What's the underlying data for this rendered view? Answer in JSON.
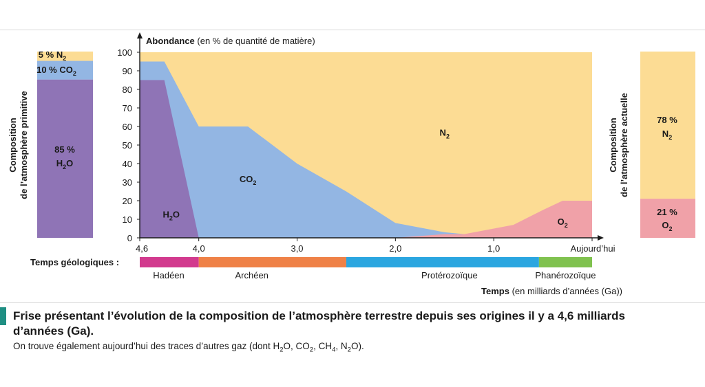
{
  "colors": {
    "H2O": "#8f74b6",
    "CO2": "#93b6e3",
    "N2": "#fcdc94",
    "O2": "#f0a1a8",
    "hadeen": "#d23a8e",
    "archeen": "#ef8147",
    "proterozoique": "#2ba6e0",
    "phanerozoique": "#80c24f",
    "caption_bar": "#1f8f83"
  },
  "left_bar": {
    "title_line1": "Composition",
    "title_line2": "de l’atmosphère primitive",
    "n2_pct": "5 %",
    "n2_label": "N",
    "n2_sub": "2",
    "co2_pct": "10 %",
    "co2_label": "CO",
    "co2_sub": "2",
    "h2o_pct": "85 %",
    "h2o_label": "H",
    "h2o_sub": "2",
    "h2o_tail": "O",
    "values": {
      "H2O": 85,
      "CO2": 10,
      "N2": 5
    }
  },
  "right_bar": {
    "title_line1": "Composition",
    "title_line2": "de l’atmosphère actuelle",
    "n2_pct": "78 %",
    "n2_label": "N",
    "n2_sub": "2",
    "o2_pct": "21 %",
    "o2_label": "O",
    "o2_sub": "2",
    "values": {
      "O2": 21,
      "N2": 78
    }
  },
  "chart_data": {
    "type": "area",
    "ylabel_bold": "Abondance",
    "ylabel_rest": " (en % de quantité de matière)",
    "ylim": [
      0,
      100
    ],
    "yticks": [
      0,
      10,
      20,
      30,
      40,
      50,
      60,
      70,
      80,
      90,
      100
    ],
    "xlim": [
      4.6,
      0
    ],
    "xticks": [
      {
        "value": 4.6,
        "label": "4,6"
      },
      {
        "value": 4.0,
        "label": "4,0"
      },
      {
        "value": 3.0,
        "label": "3,0"
      },
      {
        "value": 2.0,
        "label": "2,0"
      },
      {
        "value": 1.0,
        "label": "1,0"
      },
      {
        "value": 0.0,
        "label": "Aujourd’hui"
      }
    ],
    "xlabel_bold": "Temps",
    "xlabel_rest": " (en milliards d’années (Ga))",
    "series": [
      {
        "name": "H2O",
        "label": "H",
        "sub": "2",
        "tail": "O",
        "label_at": [
          4.28,
          11
        ],
        "points": [
          [
            4.6,
            85
          ],
          [
            4.35,
            85
          ],
          [
            4.0,
            0
          ]
        ]
      },
      {
        "name": "CO2",
        "label": "CO",
        "sub": "2",
        "tail": "",
        "label_at": [
          3.5,
          30
        ],
        "points": [
          [
            4.6,
            95
          ],
          [
            4.35,
            95
          ],
          [
            4.0,
            60
          ],
          [
            3.5,
            60
          ],
          [
            3.0,
            40
          ],
          [
            2.5,
            25
          ],
          [
            2.0,
            8
          ],
          [
            1.5,
            3
          ],
          [
            1.3,
            2
          ],
          [
            0.0,
            2
          ]
        ]
      },
      {
        "name": "O2",
        "label": "O",
        "sub": "2",
        "tail": "",
        "label_at": [
          0.3,
          7
        ],
        "points": [
          [
            2.0,
            0
          ],
          [
            1.5,
            2
          ],
          [
            1.3,
            2
          ],
          [
            0.8,
            7
          ],
          [
            0.5,
            15
          ],
          [
            0.3,
            20
          ],
          [
            0.0,
            20
          ]
        ]
      },
      {
        "name": "N2",
        "label": "N",
        "sub": "2",
        "tail": "",
        "label_at": [
          1.5,
          55
        ],
        "points": []
      }
    ]
  },
  "timeline": {
    "label": "Temps géologiques :",
    "eons": [
      {
        "name": "Hadéen",
        "start": 4.6,
        "end": 4.0,
        "color_key": "hadeen"
      },
      {
        "name": "Archéen",
        "start": 4.0,
        "end": 2.5,
        "color_key": "archeen"
      },
      {
        "name": "Protérozoïque",
        "start": 2.5,
        "end": 0.54,
        "color_key": "proterozoique"
      },
      {
        "name": "Phanérozoïque",
        "start": 0.54,
        "end": 0.0,
        "color_key": "phanerozoique"
      }
    ]
  },
  "caption": {
    "title": "Frise présentant l’évolution de la composition de l’atmosphère terrestre depuis ses origines il y a 4,6 milliards d’années (Ga).",
    "note_start": "On trouve également aujourd’hui des traces d’autres gaz (dont H",
    "note_s1": "2",
    "note_mid1": "O, CO",
    "note_s2": "2",
    "note_mid2": ", CH",
    "note_s3": "4",
    "note_mid3": ", N",
    "note_s4": "2",
    "note_end": "O)."
  }
}
